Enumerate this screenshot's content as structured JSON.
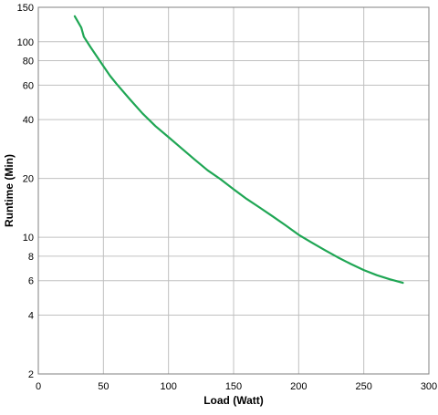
{
  "chart_data": {
    "type": "line",
    "xlabel": "Load (Watt)",
    "ylabel": "Runtime (Min)",
    "xlim": [
      0,
      300
    ],
    "ylim": [
      2,
      150
    ],
    "y_scale": "log",
    "grid": true,
    "x_ticks": [
      0,
      50,
      100,
      150,
      200,
      250,
      300
    ],
    "y_ticks": [
      2,
      4,
      6,
      8,
      10,
      20,
      40,
      60,
      80,
      100,
      150
    ],
    "series": [
      {
        "color": "#1fa654",
        "x": [
          28,
          30,
          33,
          35,
          40,
          45,
          50,
          55,
          60,
          70,
          80,
          90,
          100,
          110,
          120,
          130,
          140,
          150,
          160,
          170,
          180,
          190,
          200,
          210,
          220,
          230,
          240,
          250,
          260,
          270,
          280
        ],
        "y": [
          135,
          128,
          118,
          106,
          94,
          84,
          75,
          67,
          61,
          51,
          43,
          37,
          32.5,
          28.5,
          25,
          22,
          19.8,
          17.6,
          15.7,
          14.2,
          12.8,
          11.5,
          10.3,
          9.4,
          8.6,
          7.9,
          7.3,
          6.8,
          6.4,
          6.1,
          5.85
        ]
      }
    ]
  }
}
